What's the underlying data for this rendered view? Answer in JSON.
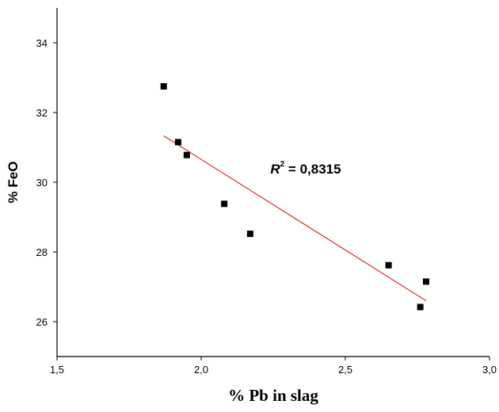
{
  "chart_data": {
    "type": "scatter",
    "xlabel": "% Pb in slag",
    "ylabel": "% FeO",
    "xlim": [
      1.5,
      3.0
    ],
    "ylim": [
      25.0,
      35.0
    ],
    "x_ticks": [
      1.5,
      2.0,
      2.5,
      3.0
    ],
    "x_tick_labels": [
      "1,5",
      "2,0",
      "2,5",
      "3,0"
    ],
    "y_ticks": [
      26,
      28,
      30,
      32,
      34
    ],
    "y_tick_labels": [
      "26",
      "28",
      "30",
      "32",
      "34"
    ],
    "grid": false,
    "series": [
      {
        "marker": "square",
        "color": "#000000",
        "points": [
          {
            "x": 1.87,
            "y": 32.75
          },
          {
            "x": 1.92,
            "y": 31.15
          },
          {
            "x": 1.95,
            "y": 30.78
          },
          {
            "x": 2.08,
            "y": 29.38
          },
          {
            "x": 2.17,
            "y": 28.52
          },
          {
            "x": 2.65,
            "y": 27.62
          },
          {
            "x": 2.76,
            "y": 26.42
          },
          {
            "x": 2.78,
            "y": 27.15
          }
        ]
      }
    ],
    "trendline": {
      "type": "linear",
      "color": "#e00000",
      "from": {
        "x": 1.87,
        "y": 31.33
      },
      "to": {
        "x": 2.78,
        "y": 26.6
      }
    },
    "annotation": {
      "r_letter": "R",
      "r_superscript": "2",
      "text": " = 0,8315",
      "x": 2.24,
      "y": 30.25
    }
  }
}
